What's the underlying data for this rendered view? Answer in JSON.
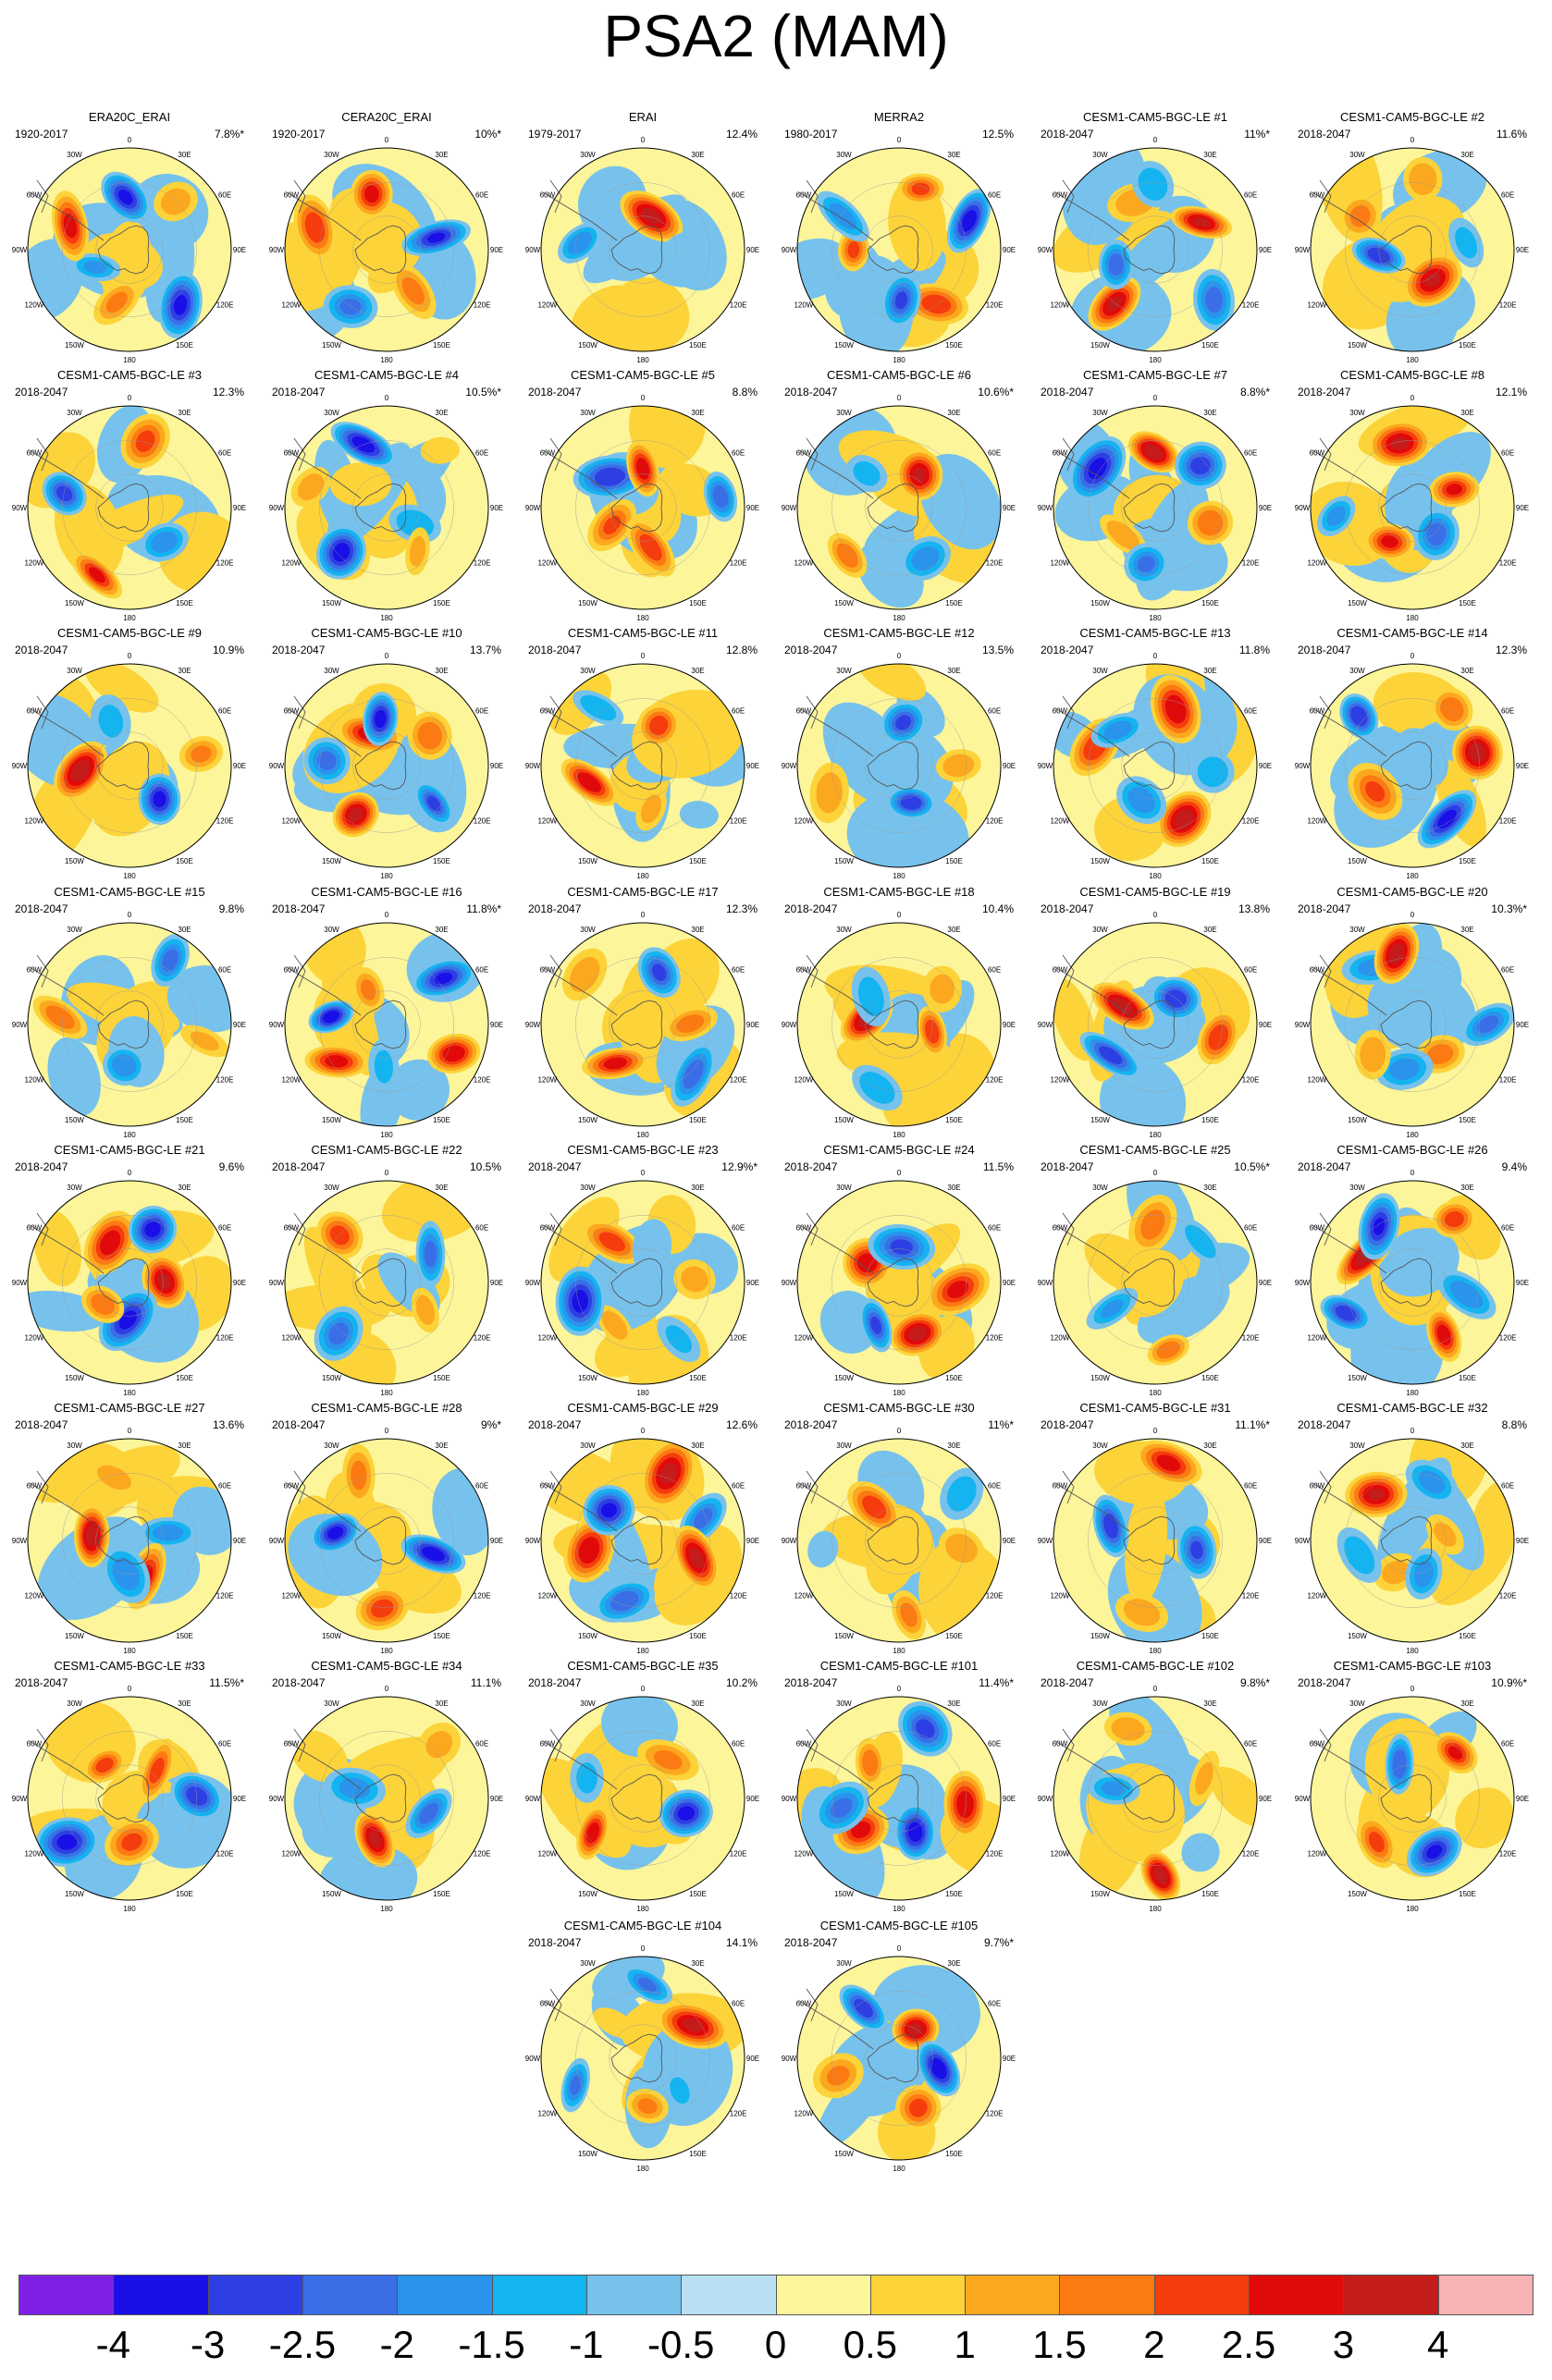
{
  "title": "PSA2 (MAM)",
  "longitude_labels": [
    "0",
    "30E",
    "60E",
    "90E",
    "120E",
    "150E",
    "180",
    "150W",
    "120W",
    "90W",
    "60W",
    "30W"
  ],
  "panels": [
    {
      "name": "ERA20C_ERAI",
      "years": "1920-2017",
      "pct": "7.8%*"
    },
    {
      "name": "CERA20C_ERAI",
      "years": "1920-2017",
      "pct": "10%*"
    },
    {
      "name": "ERAI",
      "years": "1979-2017",
      "pct": "12.4%"
    },
    {
      "name": "MERRA2",
      "years": "1980-2017",
      "pct": "12.5%"
    },
    {
      "name": "CESM1-CAM5-BGC-LE #1",
      "years": "2018-2047",
      "pct": "11%*"
    },
    {
      "name": "CESM1-CAM5-BGC-LE #2",
      "years": "2018-2047",
      "pct": "11.6%"
    },
    {
      "name": "CESM1-CAM5-BGC-LE #3",
      "years": "2018-2047",
      "pct": "12.3%"
    },
    {
      "name": "CESM1-CAM5-BGC-LE #4",
      "years": "2018-2047",
      "pct": "10.5%*"
    },
    {
      "name": "CESM1-CAM5-BGC-LE #5",
      "years": "2018-2047",
      "pct": "8.8%"
    },
    {
      "name": "CESM1-CAM5-BGC-LE #6",
      "years": "2018-2047",
      "pct": "10.6%*"
    },
    {
      "name": "CESM1-CAM5-BGC-LE #7",
      "years": "2018-2047",
      "pct": "8.8%*"
    },
    {
      "name": "CESM1-CAM5-BGC-LE #8",
      "years": "2018-2047",
      "pct": "12.1%"
    },
    {
      "name": "CESM1-CAM5-BGC-LE #9",
      "years": "2018-2047",
      "pct": "10.9%"
    },
    {
      "name": "CESM1-CAM5-BGC-LE #10",
      "years": "2018-2047",
      "pct": "13.7%"
    },
    {
      "name": "CESM1-CAM5-BGC-LE #11",
      "years": "2018-2047",
      "pct": "12.8%"
    },
    {
      "name": "CESM1-CAM5-BGC-LE #12",
      "years": "2018-2047",
      "pct": "13.5%"
    },
    {
      "name": "CESM1-CAM5-BGC-LE #13",
      "years": "2018-2047",
      "pct": "11.8%"
    },
    {
      "name": "CESM1-CAM5-BGC-LE #14",
      "years": "2018-2047",
      "pct": "12.3%"
    },
    {
      "name": "CESM1-CAM5-BGC-LE #15",
      "years": "2018-2047",
      "pct": "9.8%"
    },
    {
      "name": "CESM1-CAM5-BGC-LE #16",
      "years": "2018-2047",
      "pct": "11.8%*"
    },
    {
      "name": "CESM1-CAM5-BGC-LE #17",
      "years": "2018-2047",
      "pct": "12.3%"
    },
    {
      "name": "CESM1-CAM5-BGC-LE #18",
      "years": "2018-2047",
      "pct": "10.4%"
    },
    {
      "name": "CESM1-CAM5-BGC-LE #19",
      "years": "2018-2047",
      "pct": "13.8%"
    },
    {
      "name": "CESM1-CAM5-BGC-LE #20",
      "years": "2018-2047",
      "pct": "10.3%*"
    },
    {
      "name": "CESM1-CAM5-BGC-LE #21",
      "years": "2018-2047",
      "pct": "9.6%"
    },
    {
      "name": "CESM1-CAM5-BGC-LE #22",
      "years": "2018-2047",
      "pct": "10.5%"
    },
    {
      "name": "CESM1-CAM5-BGC-LE #23",
      "years": "2018-2047",
      "pct": "12.9%*"
    },
    {
      "name": "CESM1-CAM5-BGC-LE #24",
      "years": "2018-2047",
      "pct": "11.5%"
    },
    {
      "name": "CESM1-CAM5-BGC-LE #25",
      "years": "2018-2047",
      "pct": "10.5%*"
    },
    {
      "name": "CESM1-CAM5-BGC-LE #26",
      "years": "2018-2047",
      "pct": "9.4%"
    },
    {
      "name": "CESM1-CAM5-BGC-LE #27",
      "years": "2018-2047",
      "pct": "13.6%"
    },
    {
      "name": "CESM1-CAM5-BGC-LE #28",
      "years": "2018-2047",
      "pct": "9%*"
    },
    {
      "name": "CESM1-CAM5-BGC-LE #29",
      "years": "2018-2047",
      "pct": "12.6%"
    },
    {
      "name": "CESM1-CAM5-BGC-LE #30",
      "years": "2018-2047",
      "pct": "11%*"
    },
    {
      "name": "CESM1-CAM5-BGC-LE #31",
      "years": "2018-2047",
      "pct": "11.1%*"
    },
    {
      "name": "CESM1-CAM5-BGC-LE #32",
      "years": "2018-2047",
      "pct": "8.8%"
    },
    {
      "name": "CESM1-CAM5-BGC-LE #33",
      "years": "2018-2047",
      "pct": "11.5%*"
    },
    {
      "name": "CESM1-CAM5-BGC-LE #34",
      "years": "2018-2047",
      "pct": "11.1%"
    },
    {
      "name": "CESM1-CAM5-BGC-LE #35",
      "years": "2018-2047",
      "pct": "10.2%"
    },
    {
      "name": "CESM1-CAM5-BGC-LE #101",
      "years": "2018-2047",
      "pct": "11.4%*"
    },
    {
      "name": "CESM1-CAM5-BGC-LE #102",
      "years": "2018-2047",
      "pct": "9.8%*"
    },
    {
      "name": "CESM1-CAM5-BGC-LE #103",
      "years": "2018-2047",
      "pct": "10.9%*"
    },
    {
      "name": "CESM1-CAM5-BGC-LE #104",
      "years": "2018-2047",
      "pct": "14.1%"
    },
    {
      "name": "CESM1-CAM5-BGC-LE #105",
      "years": "2018-2047",
      "pct": "9.7%*"
    }
  ],
  "colorbar": {
    "labels": [
      "-4",
      "-3",
      "-2.5",
      "-2",
      "-1.5",
      "-1",
      "-0.5",
      "0",
      "0.5",
      "1",
      "1.5",
      "2",
      "2.5",
      "3",
      "4"
    ],
    "colors": [
      "#7f1fe6",
      "#1a0fe6",
      "#2d3fe3",
      "#3a6ee6",
      "#2a93ec",
      "#14b4f0",
      "#77c2ec",
      "#b9e0f2",
      "#fcf59a",
      "#fcd339",
      "#fca81f",
      "#fc7a12",
      "#f53c0d",
      "#e10a0a",
      "#c41b1b",
      "#f7b3b3"
    ]
  }
}
